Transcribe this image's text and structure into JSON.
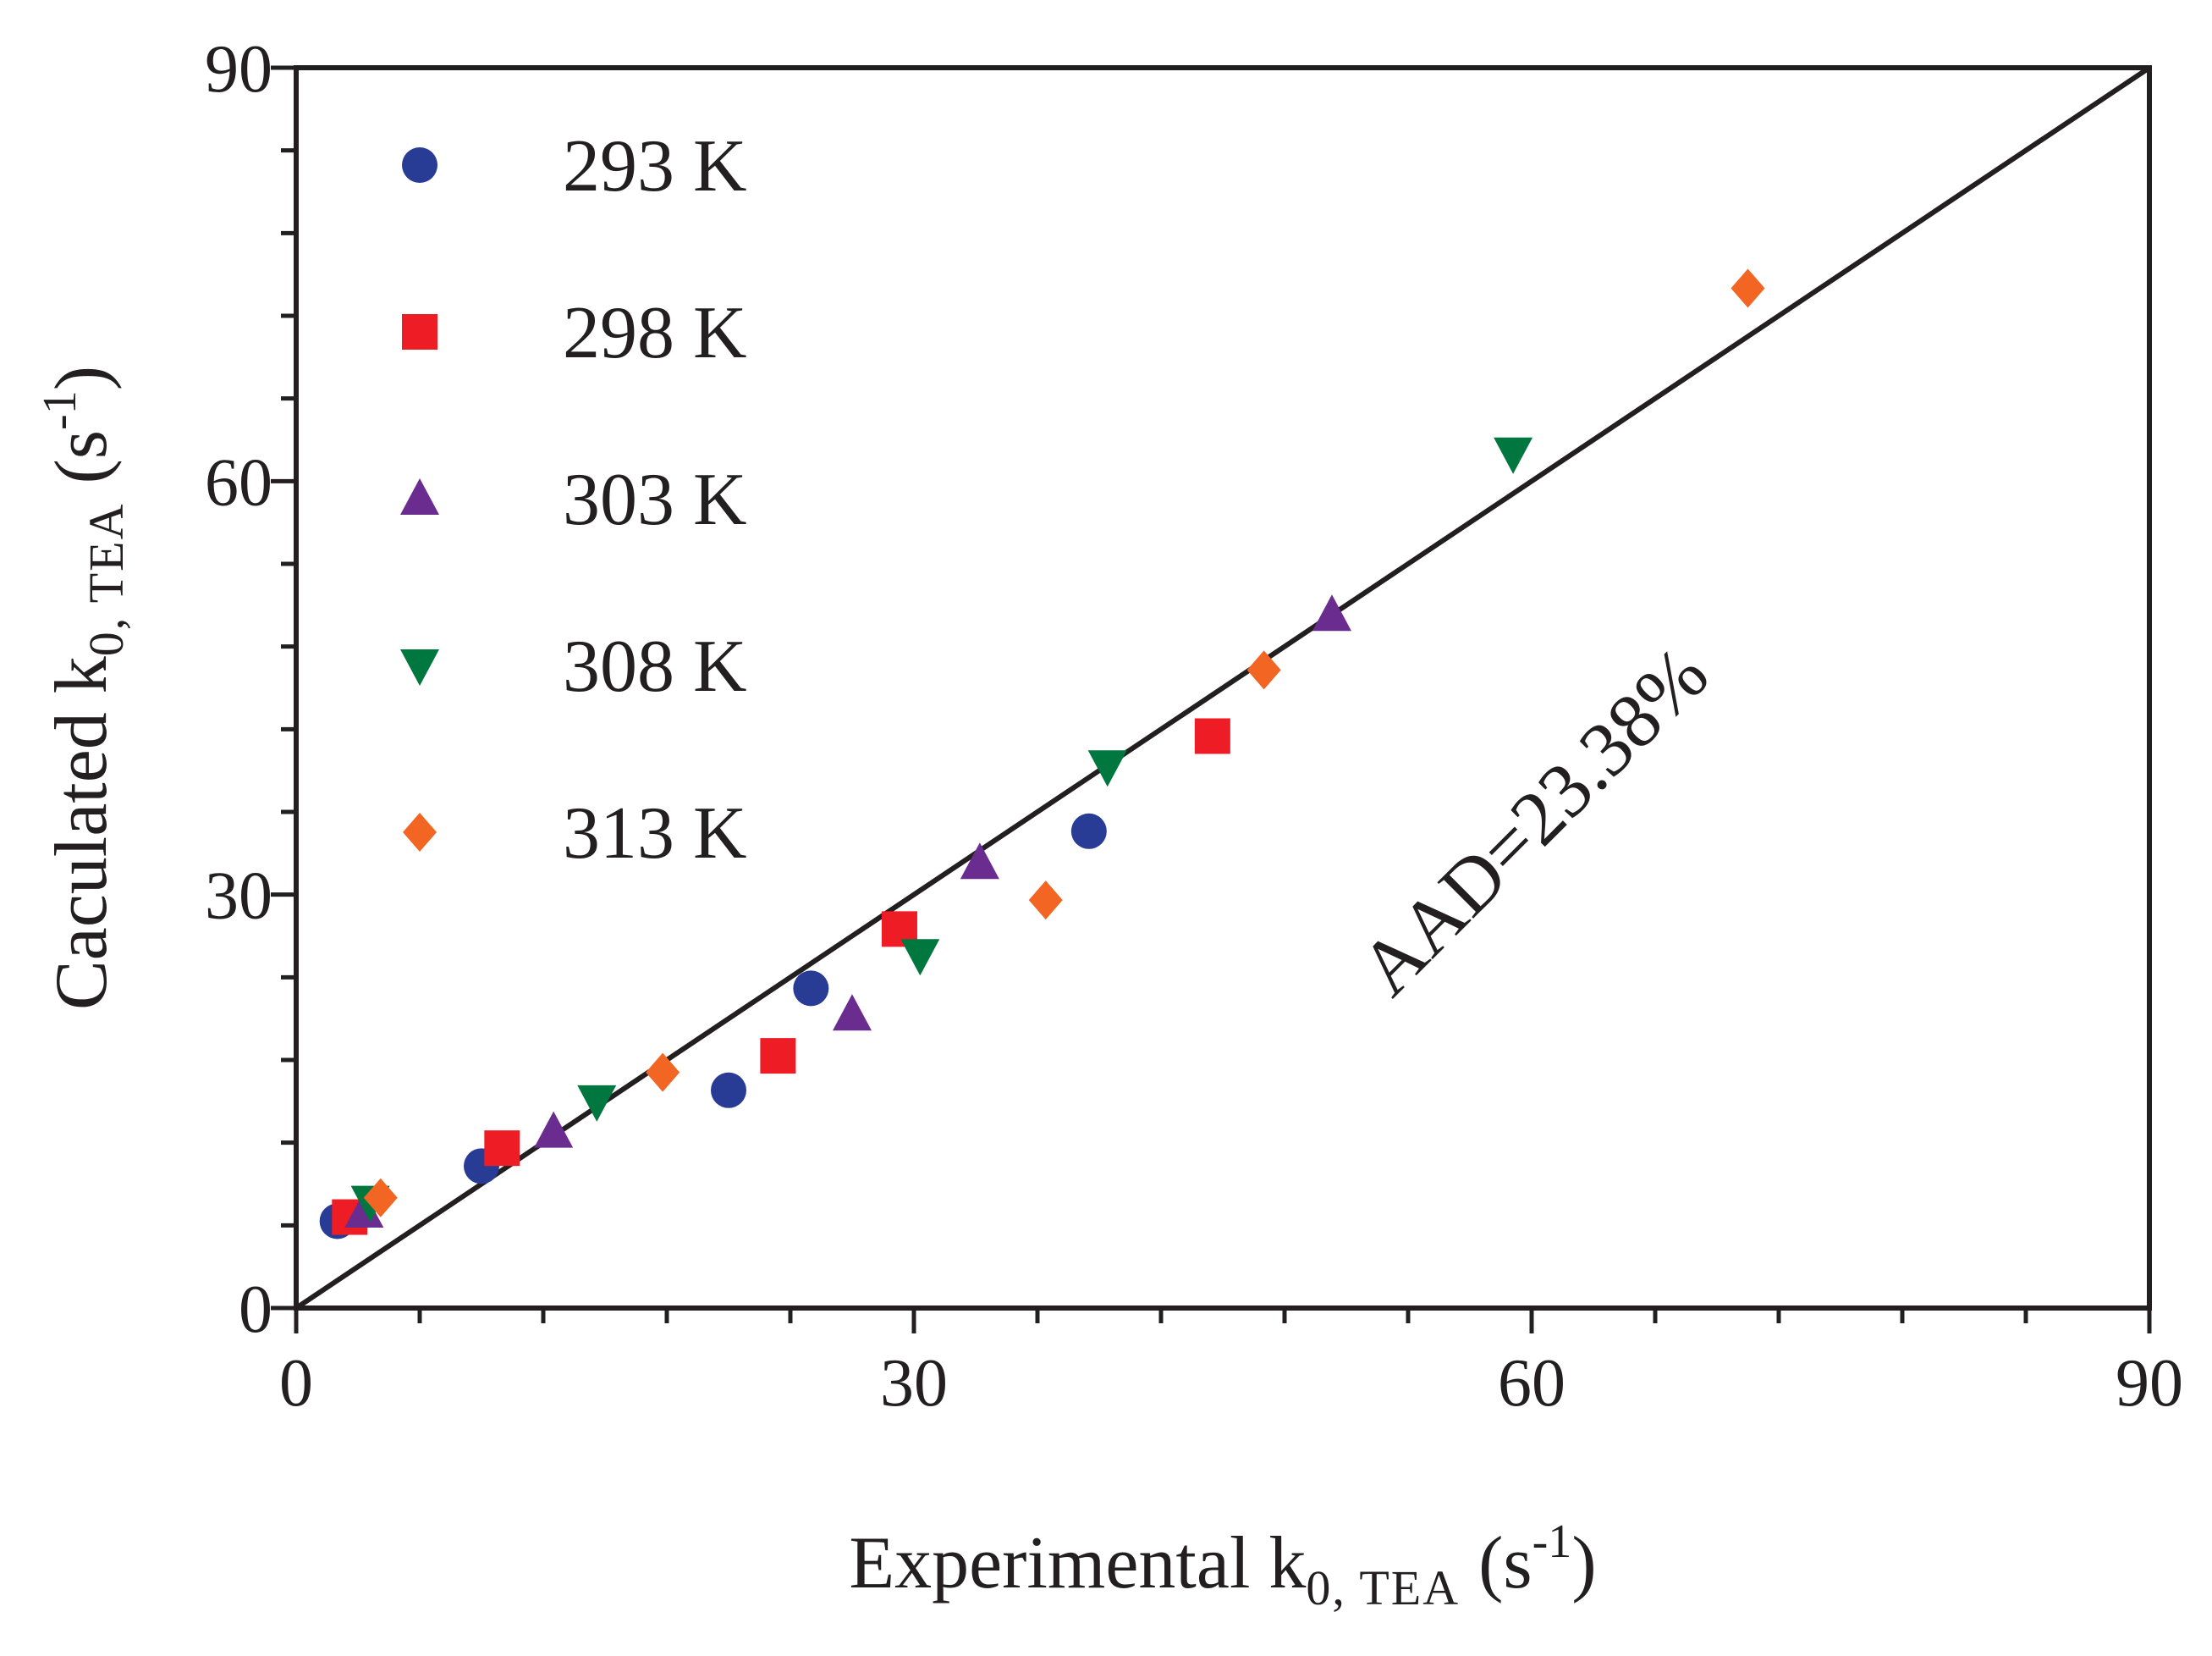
{
  "chart_data": {
    "type": "scatter",
    "title": "",
    "xlabel": {
      "main": "Experimental k",
      "subscript": "0, TEA",
      "unit_open": " (s",
      "unit_sup": "-1",
      "unit_close": ")"
    },
    "ylabel": {
      "main": "Caculated k",
      "subscript": "0, TEA",
      "unit_open": " (s",
      "unit_sup": "-1",
      "unit_close": ")"
    },
    "xlim": [
      0,
      90
    ],
    "ylim": [
      0,
      90
    ],
    "xticks": [
      0,
      30,
      60,
      90
    ],
    "yticks": [
      0,
      30,
      60,
      90
    ],
    "xtick_labels": [
      "0",
      "30",
      "60",
      "90"
    ],
    "ytick_labels": [
      "0",
      "30",
      "60",
      "90"
    ],
    "minor_tick_step": 6,
    "reference_line": {
      "from": [
        0,
        0
      ],
      "to": [
        90,
        90
      ],
      "color": "#231f20"
    },
    "annotation": {
      "text": "AAD=23.38%",
      "x": 61,
      "y": 34,
      "angle_deg": -45
    },
    "legend_position": "top-left",
    "series": [
      {
        "name": "293 K",
        "marker": "circle",
        "color": "#283c96",
        "x": [
          2.0,
          9.0,
          21.0,
          25.0,
          38.5
        ],
        "y": [
          6.3,
          10.3,
          15.8,
          23.2,
          34.6
        ]
      },
      {
        "name": "298 K",
        "marker": "square",
        "color": "#ee1c25",
        "x": [
          2.6,
          10.0,
          23.4,
          29.3,
          44.5
        ],
        "y": [
          6.6,
          11.6,
          18.3,
          27.5,
          41.5
        ]
      },
      {
        "name": "303 K",
        "marker": "triangle-up",
        "color": "#6a2c8e",
        "x": [
          3.3,
          12.5,
          27.0,
          33.2,
          50.3
        ],
        "y": [
          7.0,
          12.8,
          21.3,
          32.3,
          50.3
        ]
      },
      {
        "name": "308 K",
        "marker": "triangle-down",
        "color": "#00773e",
        "x": [
          3.6,
          14.6,
          30.3,
          39.4,
          59.1
        ],
        "y": [
          7.7,
          15.0,
          25.6,
          39.3,
          62.0
        ]
      },
      {
        "name": "313 K",
        "marker": "diamond",
        "color": "#f26522",
        "x": [
          4.1,
          17.8,
          36.4,
          47.0,
          70.5
        ],
        "y": [
          8.0,
          17.1,
          29.6,
          46.3,
          74.0
        ]
      }
    ]
  }
}
